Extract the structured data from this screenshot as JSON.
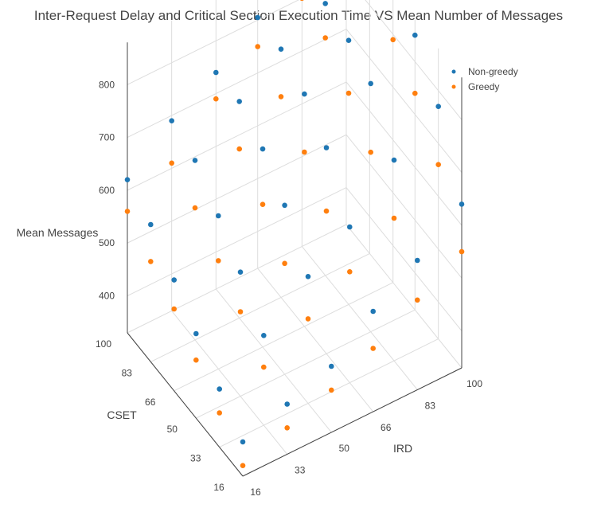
{
  "chart_data": {
    "type": "scatter",
    "title": "Inter-Request Delay and Critical Section Execution Time VS Mean Number of Messages",
    "xlabel": "IRD",
    "ylabel": "CSET",
    "zlabel": "Mean Messages",
    "x_ticks": [
      "16",
      "33",
      "50",
      "66",
      "83",
      "100"
    ],
    "y_ticks": [
      "16",
      "33",
      "50",
      "66",
      "83",
      "100"
    ],
    "z_ticks": [
      "400",
      "500",
      "600",
      "700",
      "800"
    ],
    "x_values": [
      16,
      33,
      50,
      66,
      83,
      100
    ],
    "y_values": [
      16,
      33,
      50,
      66,
      83,
      100
    ],
    "zlim": [
      330,
      880
    ],
    "legend_position": "top-right",
    "grid": true,
    "series": [
      {
        "name": "Non-greedy",
        "color": "#1f77b4",
        "z": [
          [
            395,
            425,
            455,
            520,
            575,
            640
          ],
          [
            440,
            500,
            570,
            625,
            710,
            770
          ],
          [
            490,
            565,
            650,
            720,
            800,
            850
          ],
          [
            540,
            620,
            705,
            770,
            830,
            880
          ],
          [
            590,
            670,
            740,
            800,
            845,
            870
          ],
          [
            620,
            690,
            740,
            805,
            840,
            865
          ]
        ]
      },
      {
        "name": "Greedy",
        "color": "#ff7f0e",
        "z": [
          [
            350,
            380,
            410,
            450,
            500,
            550
          ],
          [
            395,
            440,
            490,
            540,
            600,
            660
          ],
          [
            440,
            490,
            540,
            600,
            670,
            740
          ],
          [
            485,
            535,
            600,
            660,
            730,
            790
          ],
          [
            520,
            580,
            650,
            710,
            780,
            820
          ],
          [
            560,
            610,
            690,
            750,
            800,
            830
          ]
        ]
      }
    ]
  }
}
